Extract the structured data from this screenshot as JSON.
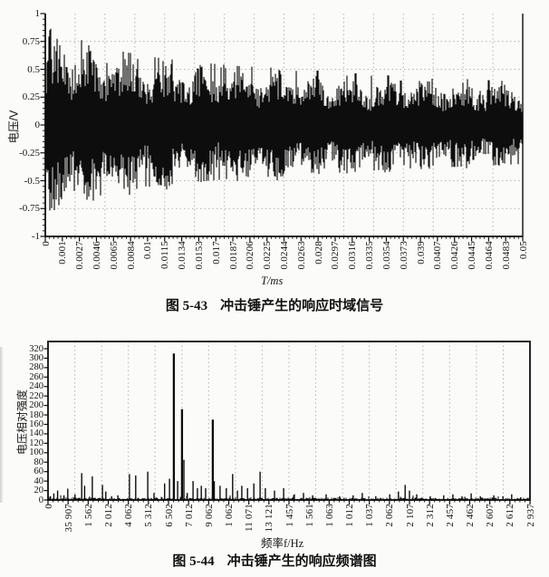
{
  "page": {
    "background": "#fbfbf9",
    "ink_color": "#0d0d0d",
    "grid_color": "#b3b3b0"
  },
  "chart_data": [
    {
      "type": "line",
      "figure_label": "图 5-43",
      "title": "冲击锤产生的响应时域信号",
      "xlabel": "T/ms",
      "ylabel": "电压/V",
      "ylim": [
        -1,
        1
      ],
      "grid": true,
      "legend": null,
      "x_tick_labels": [
        "0",
        "0.001",
        "0.0027",
        "0.0046",
        "0.0065",
        "0.0084",
        "0.01",
        "0.0115",
        "0.0134",
        "0.0153",
        "0.017",
        "0.0187",
        "0.0206",
        "0.0225",
        "0.0244",
        "0.0263",
        "0.028",
        "0.0297",
        "0.0316",
        "0.0335",
        "0.0354",
        "0.0373",
        "0.039",
        "0.0407",
        "0.0426",
        "0.0445",
        "0.0464",
        "0.0483",
        "0.05"
      ],
      "y_tick_labels": [
        "1",
        "0.75",
        "0.5",
        "0.25",
        "0",
        "-0.25",
        "-0.5",
        "-0.75",
        "-1"
      ],
      "signal": {
        "kind": "dense-random-noise-decaying",
        "seed": 42,
        "envelope_x": [
          0,
          0.01,
          0.04,
          0.08,
          0.12,
          0.17,
          0.22,
          0.3,
          0.4,
          0.5,
          0.6,
          0.7,
          0.8,
          0.9,
          1
        ],
        "envelope_amp": [
          0.55,
          0.85,
          0.8,
          0.74,
          0.68,
          0.64,
          0.6,
          0.56,
          0.52,
          0.5,
          0.47,
          0.44,
          0.42,
          0.4,
          0.38
        ],
        "core_fraction": 0.42,
        "burst_cycles": 13
      }
    },
    {
      "type": "bar",
      "figure_label": "图 5-44",
      "title": "冲击锤产生的响应频谱图",
      "xlabel": "频率f/Hz",
      "ylabel": "电压相对强度",
      "ylim": [
        0,
        320
      ],
      "grid": true,
      "legend": null,
      "x_tick_labels": [
        "0",
        "35 907",
        "1 562",
        "2 012",
        "4 062",
        "5 312",
        "6 502",
        "7 012",
        "9 062",
        "1 062",
        "11 071",
        "13 121",
        "1 457",
        "1 561",
        "1 063",
        "1 012",
        "1 037",
        "2 062",
        "2 107",
        "2 312",
        "2 457",
        "2 462",
        "2 607",
        "2 612",
        "2 937"
      ],
      "y_tick_labels": [
        "320",
        "300",
        "280",
        "260",
        "240",
        "220",
        "200",
        "180",
        "160",
        "140",
        "120",
        "100",
        "80",
        "60",
        "40",
        "20",
        "0"
      ],
      "noise_floor": {
        "seed": 7,
        "max": 5
      },
      "peaks": [
        [
          0.005,
          8
        ],
        [
          0.012,
          14
        ],
        [
          0.02,
          20
        ],
        [
          0.033,
          10
        ],
        [
          0.041,
          24
        ],
        [
          0.056,
          12
        ],
        [
          0.07,
          57
        ],
        [
          0.076,
          30
        ],
        [
          0.092,
          50
        ],
        [
          0.113,
          32
        ],
        [
          0.12,
          18
        ],
        [
          0.132,
          8
        ],
        [
          0.145,
          10
        ],
        [
          0.169,
          55
        ],
        [
          0.182,
          52
        ],
        [
          0.207,
          60
        ],
        [
          0.22,
          15
        ],
        [
          0.242,
          35
        ],
        [
          0.252,
          45
        ],
        [
          0.261,
          310
        ],
        [
          0.269,
          40
        ],
        [
          0.278,
          192
        ],
        [
          0.282,
          85
        ],
        [
          0.289,
          15
        ],
        [
          0.301,
          40
        ],
        [
          0.31,
          25
        ],
        [
          0.318,
          30
        ],
        [
          0.327,
          25
        ],
        [
          0.342,
          170
        ],
        [
          0.345,
          40
        ],
        [
          0.357,
          30
        ],
        [
          0.37,
          25
        ],
        [
          0.383,
          55
        ],
        [
          0.393,
          20
        ],
        [
          0.402,
          30
        ],
        [
          0.414,
          25
        ],
        [
          0.427,
          35
        ],
        [
          0.44,
          60
        ],
        [
          0.451,
          25
        ],
        [
          0.47,
          20
        ],
        [
          0.489,
          25
        ],
        [
          0.511,
          12
        ],
        [
          0.53,
          15
        ],
        [
          0.549,
          10
        ],
        [
          0.577,
          12
        ],
        [
          0.605,
          8
        ],
        [
          0.633,
          10
        ],
        [
          0.652,
          15
        ],
        [
          0.68,
          8
        ],
        [
          0.709,
          12
        ],
        [
          0.727,
          18
        ],
        [
          0.741,
          32
        ],
        [
          0.75,
          20
        ],
        [
          0.765,
          12
        ],
        [
          0.793,
          8
        ],
        [
          0.821,
          10
        ],
        [
          0.84,
          12
        ],
        [
          0.859,
          8
        ],
        [
          0.878,
          14
        ],
        [
          0.897,
          8
        ],
        [
          0.925,
          10
        ],
        [
          0.944,
          8
        ],
        [
          0.962,
          12
        ],
        [
          0.981,
          6
        ]
      ]
    }
  ]
}
